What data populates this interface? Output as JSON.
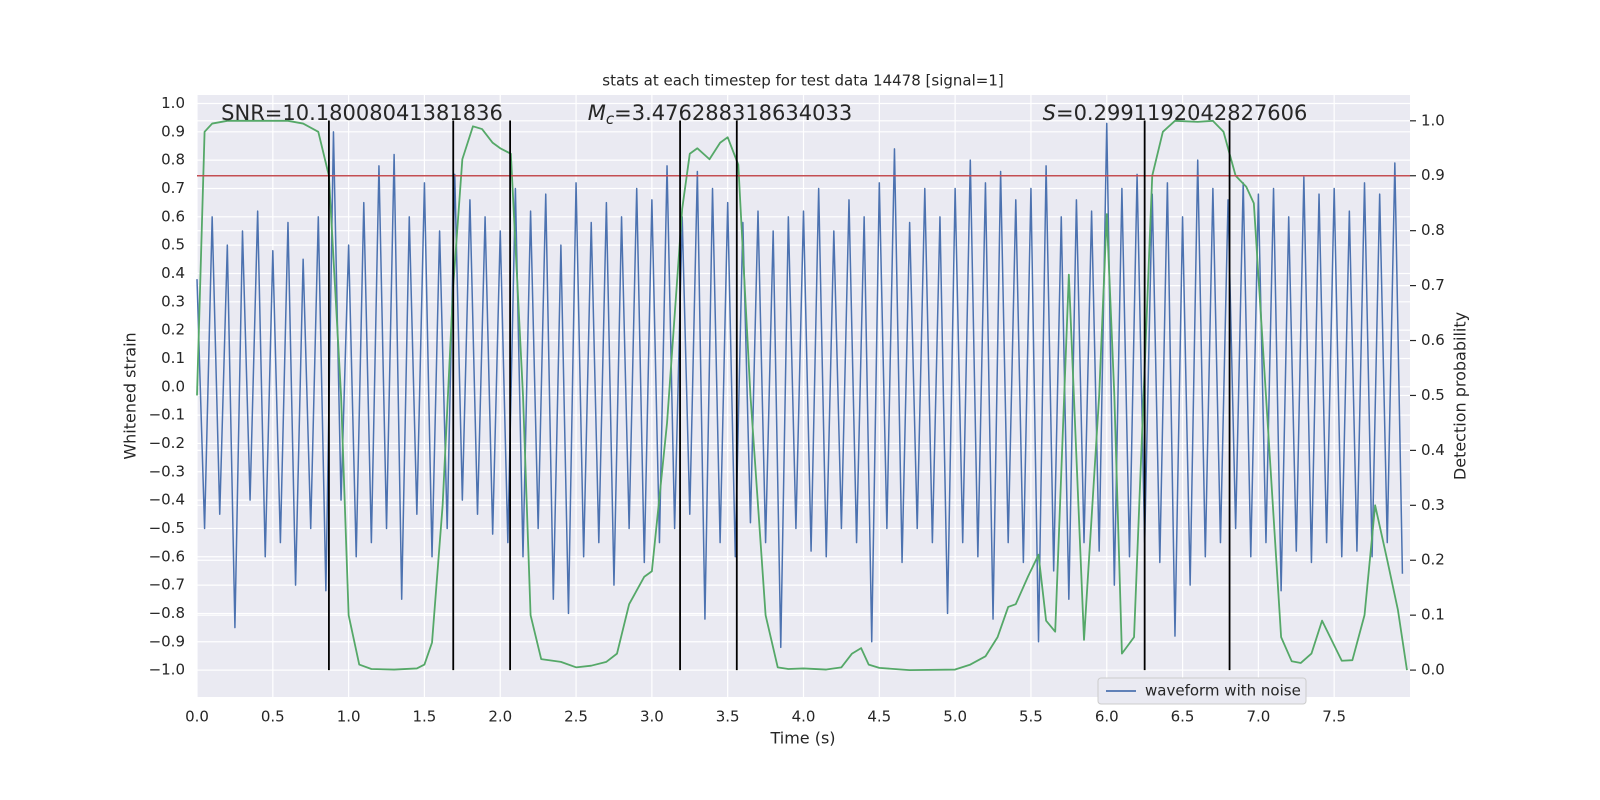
{
  "chart_data": {
    "type": "line",
    "title": "stats at each timestep for test data 14478 [signal=1]",
    "xlabel": "Time (s)",
    "ylabel": "Whitened strain",
    "y2label": "Detection probability",
    "annotations": [
      {
        "text": "SNR=10.18008041381836"
      },
      {
        "symbol": "M",
        "subscript": "c",
        "text": "=3.476288318634033"
      },
      {
        "symbol": "S",
        "text": "=0.2991192042827606"
      }
    ],
    "xlim": [
      0,
      8.0
    ],
    "ylim": [
      -1.095,
      1.03
    ],
    "y2lim": [
      -0.049,
      1.047
    ],
    "xticks": [
      {
        "value": 0,
        "label": "0.0"
      },
      {
        "value": 0.5,
        "label": "0.5"
      },
      {
        "value": 1,
        "label": "1.0"
      },
      {
        "value": 1.5,
        "label": "1.5"
      },
      {
        "value": 2,
        "label": "2.0"
      },
      {
        "value": 2.5,
        "label": "2.5"
      },
      {
        "value": 3,
        "label": "3.0"
      },
      {
        "value": 3.5,
        "label": "3.5"
      },
      {
        "value": 4,
        "label": "4.0"
      },
      {
        "value": 4.5,
        "label": "4.5"
      },
      {
        "value": 5,
        "label": "5.0"
      },
      {
        "value": 5.5,
        "label": "5.5"
      },
      {
        "value": 6,
        "label": "6.0"
      },
      {
        "value": 6.5,
        "label": "6.5"
      },
      {
        "value": 7,
        "label": "7.0"
      },
      {
        "value": 7.5,
        "label": "7.5"
      }
    ],
    "yticks": [
      {
        "value": -1,
        "label": "−1.0"
      },
      {
        "value": -0.9,
        "label": "−0.9"
      },
      {
        "value": -0.8,
        "label": "−0.8"
      },
      {
        "value": -0.7,
        "label": "−0.7"
      },
      {
        "value": -0.6,
        "label": "−0.6"
      },
      {
        "value": -0.5,
        "label": "−0.5"
      },
      {
        "value": -0.4,
        "label": "−0.4"
      },
      {
        "value": -0.3,
        "label": "−0.3"
      },
      {
        "value": -0.2,
        "label": "−0.2"
      },
      {
        "value": -0.1,
        "label": "−0.1"
      },
      {
        "value": 0,
        "label": "0.0"
      },
      {
        "value": 0.1,
        "label": "0.1"
      },
      {
        "value": 0.2,
        "label": "0.2"
      },
      {
        "value": 0.3,
        "label": "0.3"
      },
      {
        "value": 0.4,
        "label": "0.4"
      },
      {
        "value": 0.5,
        "label": "0.5"
      },
      {
        "value": 0.6,
        "label": "0.6"
      },
      {
        "value": 0.7,
        "label": "0.7"
      },
      {
        "value": 0.8,
        "label": "0.8"
      },
      {
        "value": 0.9,
        "label": "0.9"
      },
      {
        "value": 1,
        "label": "1.0"
      }
    ],
    "y2ticks": [
      {
        "value": 0,
        "label": "0.0"
      },
      {
        "value": 0.1,
        "label": "0.1"
      },
      {
        "value": 0.2,
        "label": "0.2"
      },
      {
        "value": 0.3,
        "label": "0.3"
      },
      {
        "value": 0.4,
        "label": "0.4"
      },
      {
        "value": 0.5,
        "label": "0.5"
      },
      {
        "value": 0.6,
        "label": "0.6"
      },
      {
        "value": 0.7,
        "label": "0.7"
      },
      {
        "value": 0.8,
        "label": "0.8"
      },
      {
        "value": 0.9,
        "label": "0.9"
      },
      {
        "value": 1,
        "label": "1.0"
      }
    ],
    "grid": true,
    "legend": "lower right",
    "series": [
      {
        "name": "waveform with noise",
        "color": "#4c72b0",
        "x": [
          0,
          0.05,
          0.1,
          0.15,
          0.2,
          0.25,
          0.3,
          0.35,
          0.4,
          0.45,
          0.5,
          0.55,
          0.6,
          0.65,
          0.7,
          0.75,
          0.8,
          0.85,
          0.9,
          0.95,
          1,
          1.05,
          1.1,
          1.15,
          1.2,
          1.25,
          1.3,
          1.35,
          1.4,
          1.45,
          1.5,
          1.55,
          1.6,
          1.65,
          1.7,
          1.75,
          1.8,
          1.85,
          1.9,
          1.95,
          2,
          2.05,
          2.1,
          2.15,
          2.2,
          2.25,
          2.3,
          2.35,
          2.4,
          2.45,
          2.5,
          2.55,
          2.6,
          2.65,
          2.7,
          2.75,
          2.8,
          2.85,
          2.9,
          2.95,
          3,
          3.05,
          3.1,
          3.15,
          3.2,
          3.25,
          3.3,
          3.35,
          3.4,
          3.45,
          3.5,
          3.55,
          3.6,
          3.65,
          3.7,
          3.75,
          3.8,
          3.85,
          3.9,
          3.95,
          4,
          4.05,
          4.1,
          4.15,
          4.2,
          4.25,
          4.3,
          4.35,
          4.4,
          4.45,
          4.5,
          4.55,
          4.6,
          4.65,
          4.7,
          4.75,
          4.8,
          4.85,
          4.9,
          4.95,
          5,
          5.05,
          5.1,
          5.15,
          5.2,
          5.25,
          5.3,
          5.35,
          5.4,
          5.45,
          5.5,
          5.55,
          5.6,
          5.65,
          5.7,
          5.75,
          5.8,
          5.85,
          5.9,
          5.95,
          6,
          6.05,
          6.1,
          6.15,
          6.2,
          6.25,
          6.3,
          6.35,
          6.4,
          6.45,
          6.5,
          6.55,
          6.6,
          6.65,
          6.7,
          6.75,
          6.8,
          6.85,
          6.9,
          6.95,
          7,
          7.05,
          7.1,
          7.15,
          7.2,
          7.25,
          7.3,
          7.35,
          7.4,
          7.45,
          7.5,
          7.55,
          7.6,
          7.65,
          7.7,
          7.75,
          7.8,
          7.85,
          7.9,
          7.95
        ],
        "values": [
          0.38,
          -0.5,
          0.6,
          -0.45,
          0.5,
          -0.85,
          0.55,
          -0.4,
          0.62,
          -0.6,
          0.48,
          -0.55,
          0.58,
          -0.7,
          0.45,
          -0.5,
          0.6,
          -0.72,
          0.9,
          -0.4,
          0.5,
          -0.6,
          0.65,
          -0.55,
          0.78,
          -0.5,
          0.82,
          -0.75,
          0.6,
          -0.45,
          0.72,
          -0.6,
          0.55,
          -0.5,
          0.75,
          -0.4,
          0.66,
          -0.45,
          0.6,
          -0.52,
          0.55,
          -0.55,
          0.7,
          -0.6,
          0.62,
          -0.5,
          0.68,
          -0.75,
          0.5,
          -0.8,
          0.72,
          -0.6,
          0.58,
          -0.55,
          0.65,
          -0.7,
          0.6,
          -0.5,
          0.7,
          -0.62,
          0.66,
          -0.55,
          0.78,
          -0.5,
          0.6,
          -0.45,
          0.76,
          -0.82,
          0.7,
          -0.55,
          0.65,
          -0.6,
          0.58,
          -0.48,
          0.62,
          -0.55,
          0.55,
          -0.92,
          0.6,
          -0.5,
          0.62,
          -0.58,
          0.7,
          -0.6,
          0.55,
          -0.5,
          0.66,
          -0.55,
          0.6,
          -0.9,
          0.72,
          -0.5,
          0.84,
          -0.62,
          0.58,
          -0.5,
          0.7,
          -0.55,
          0.6,
          -0.8,
          0.7,
          -0.55,
          0.8,
          -0.6,
          0.72,
          -0.82,
          0.76,
          -0.55,
          0.66,
          -0.62,
          0.7,
          -0.9,
          0.78,
          -0.65,
          0.6,
          -0.75,
          0.66,
          -0.55,
          0.62,
          -0.58,
          0.93,
          -0.7,
          0.7,
          -0.6,
          0.75,
          -0.55,
          0.68,
          -0.62,
          0.72,
          -0.88,
          0.6,
          -0.7,
          0.8,
          -0.6,
          0.7,
          -0.55,
          0.66,
          -0.5,
          0.72,
          -0.6,
          0.68,
          -0.55,
          0.7,
          -0.72,
          0.6,
          -0.58,
          0.74,
          -0.62,
          0.68,
          -0.55,
          0.7,
          -0.6,
          0.62,
          -0.58,
          0.72,
          -0.6,
          0.68,
          -0.55,
          0.79,
          -0.66
        ]
      },
      {
        "color": "#55a868",
        "axis": "y2",
        "x": [
          0,
          0.05,
          0.1,
          0.2,
          0.4,
          0.6,
          0.7,
          0.8,
          0.87,
          0.95,
          1,
          1.07,
          1.15,
          1.3,
          1.45,
          1.5,
          1.55,
          1.62,
          1.69,
          1.75,
          1.82,
          1.88,
          1.95,
          2,
          2.07,
          2.15,
          2.2,
          2.27,
          2.4,
          2.5,
          2.6,
          2.7,
          2.77,
          2.85,
          2.95,
          3,
          3.1,
          3.2,
          3.25,
          3.3,
          3.38,
          3.45,
          3.5,
          3.57,
          3.65,
          3.75,
          3.83,
          3.9,
          4,
          4.15,
          4.25,
          4.32,
          4.38,
          4.43,
          4.5,
          4.7,
          5,
          5.1,
          5.2,
          5.28,
          5.35,
          5.4,
          5.48,
          5.55,
          5.6,
          5.66,
          5.75,
          5.85,
          5.95,
          6,
          6.05,
          6.1,
          6.18,
          6.25,
          6.3,
          6.37,
          6.45,
          6.6,
          6.7,
          6.77,
          6.85,
          6.92,
          6.97,
          7.05,
          7.15,
          7.22,
          7.28,
          7.35,
          7.42,
          7.5,
          7.55,
          7.62,
          7.7,
          7.77,
          7.85,
          7.92,
          7.98
        ],
        "values": [
          0.5,
          0.98,
          0.995,
          1,
          1,
          1,
          0.995,
          0.98,
          0.9,
          0.5,
          0.1,
          0.01,
          0.002,
          0.001,
          0.003,
          0.01,
          0.05,
          0.3,
          0.7,
          0.93,
          0.99,
          0.985,
          0.96,
          0.95,
          0.94,
          0.5,
          0.1,
          0.02,
          0.015,
          0.005,
          0.008,
          0.015,
          0.03,
          0.12,
          0.17,
          0.18,
          0.45,
          0.84,
          0.94,
          0.95,
          0.93,
          0.96,
          0.97,
          0.92,
          0.5,
          0.1,
          0.005,
          0.002,
          0.003,
          0.001,
          0.005,
          0.03,
          0.04,
          0.01,
          0.004,
          0,
          0.001,
          0.01,
          0.025,
          0.06,
          0.115,
          0.12,
          0.17,
          0.21,
          0.09,
          0.07,
          0.72,
          0.055,
          0.5,
          0.83,
          0.5,
          0.03,
          0.06,
          0.55,
          0.9,
          0.98,
          1,
          0.998,
          1,
          0.98,
          0.9,
          0.88,
          0.85,
          0.5,
          0.06,
          0.016,
          0.013,
          0.03,
          0.09,
          0.045,
          0.017,
          0.018,
          0.1,
          0.3,
          0.2,
          0.11,
          0
        ]
      }
    ],
    "hlines": [
      {
        "value": 0.9,
        "axis": "y2",
        "color": "#c44e52"
      }
    ],
    "vlines": {
      "x": [
        0.87,
        1.69,
        2.065,
        3.186,
        3.56,
        6.25,
        6.81
      ],
      "range": [
        -1.0,
        0.94
      ],
      "color": "#000000"
    }
  }
}
